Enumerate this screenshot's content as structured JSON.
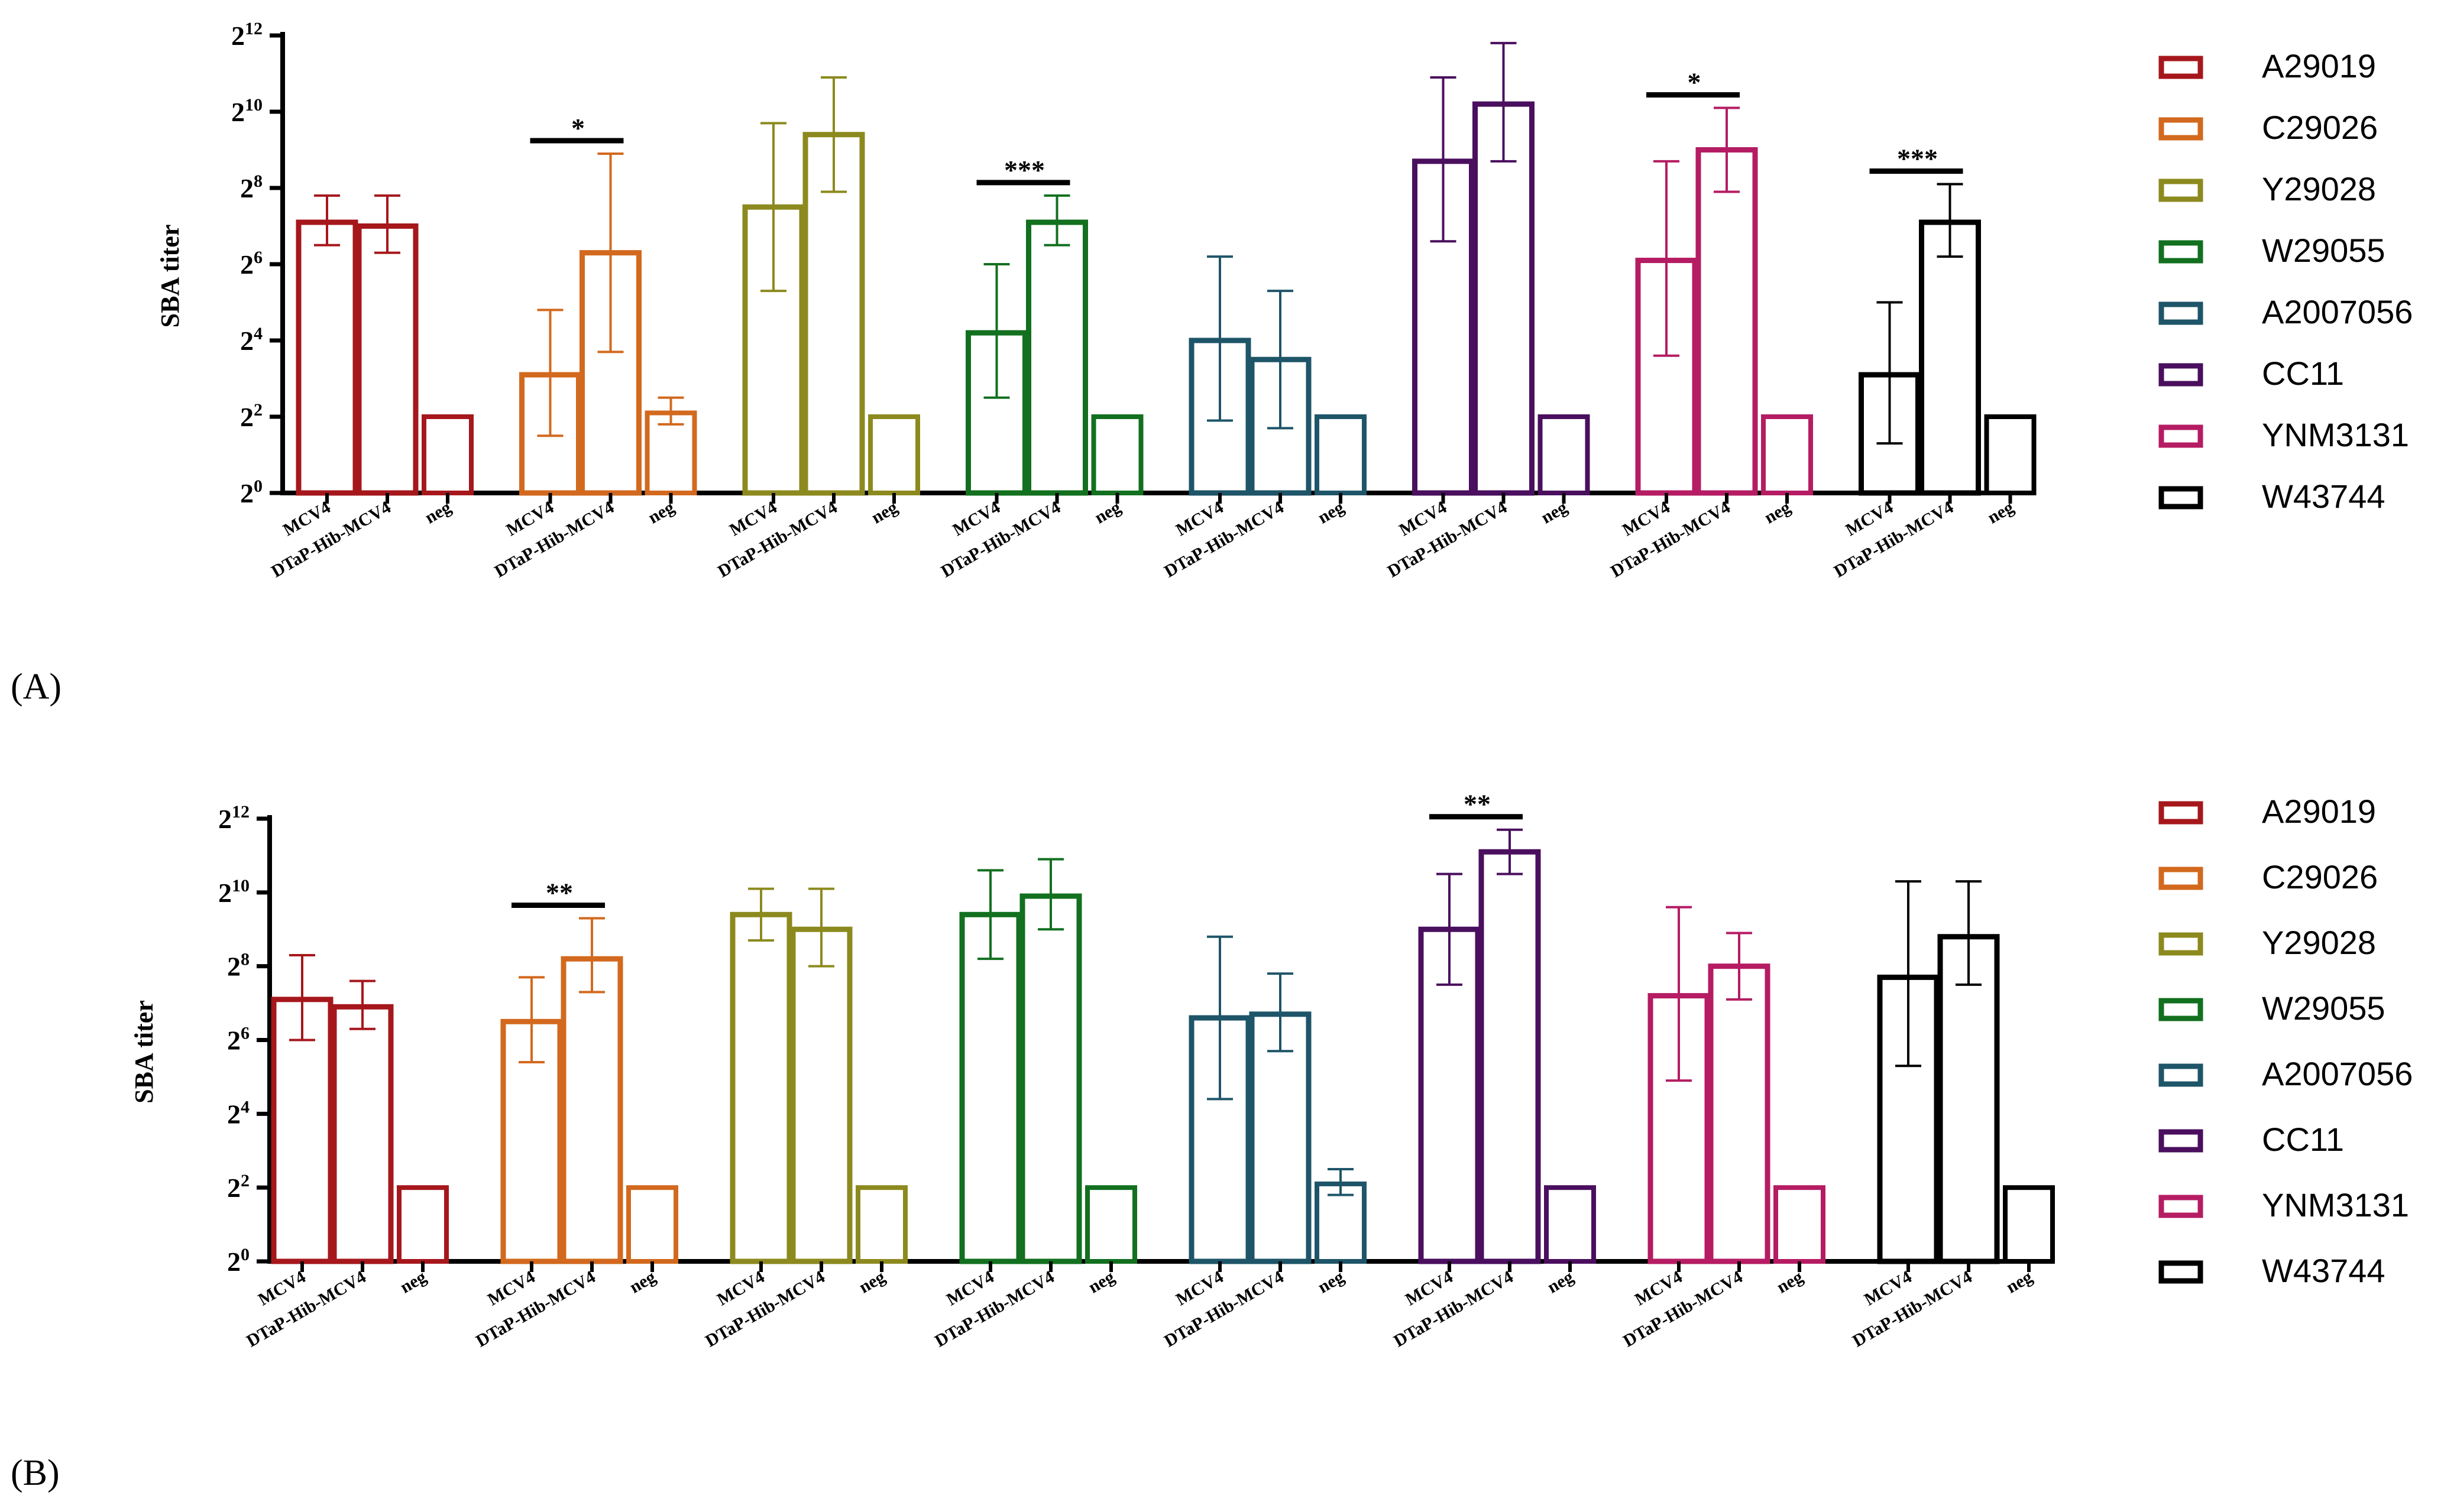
{
  "figure": {
    "panels": [
      "(A)",
      "(B)"
    ]
  },
  "chart_data": [
    {
      "panel": "(A)",
      "type": "bar",
      "ylabel": "SBA titer",
      "yscale": "log2",
      "ylim_exp": [
        0,
        12
      ],
      "yticks": [
        0,
        2,
        4,
        6,
        8,
        10,
        12
      ],
      "ytick_base": "2",
      "categories": [
        "MCV4",
        "DTaP-Hib-MCV4",
        "neg"
      ],
      "groups": [
        {
          "name": "A29019",
          "color": "#A6171C",
          "values": [
            7.1,
            7.0,
            2.0
          ],
          "err_hi": [
            7.8,
            7.8,
            null
          ],
          "err_lo": [
            6.5,
            6.3,
            null
          ],
          "sig": ""
        },
        {
          "name": "C29026",
          "color": "#D2691E",
          "values": [
            3.1,
            6.3,
            2.1
          ],
          "err_hi": [
            4.8,
            8.9,
            2.5
          ],
          "err_lo": [
            1.5,
            3.7,
            1.8
          ],
          "sig": "*"
        },
        {
          "name": "Y29028",
          "color": "#8C8A1E",
          "values": [
            7.5,
            9.4,
            2.0
          ],
          "err_hi": [
            9.7,
            10.9,
            null
          ],
          "err_lo": [
            5.3,
            7.9,
            null
          ],
          "sig": ""
        },
        {
          "name": "W29055",
          "color": "#12701F",
          "values": [
            4.2,
            7.1,
            2.0
          ],
          "err_hi": [
            6.0,
            7.8,
            null
          ],
          "err_lo": [
            2.5,
            6.5,
            null
          ],
          "sig": "***"
        },
        {
          "name": "A2007056",
          "color": "#1E5568",
          "values": [
            4.0,
            3.5,
            2.0
          ],
          "err_hi": [
            6.2,
            5.3,
            null
          ],
          "err_lo": [
            1.9,
            1.7,
            null
          ],
          "sig": ""
        },
        {
          "name": "CC11",
          "color": "#4A0F5E",
          "values": [
            8.7,
            10.2,
            2.0
          ],
          "err_hi": [
            10.9,
            11.8,
            null
          ],
          "err_lo": [
            6.6,
            8.7,
            null
          ],
          "sig": ""
        },
        {
          "name": "YNM3131",
          "color": "#B51C63",
          "values": [
            6.1,
            9.0,
            2.0
          ],
          "err_hi": [
            8.7,
            10.1,
            null
          ],
          "err_lo": [
            3.6,
            7.9,
            null
          ],
          "sig": "*"
        },
        {
          "name": "W43744",
          "color": "#000000",
          "values": [
            3.1,
            7.1,
            2.0
          ],
          "err_hi": [
            5.0,
            8.1,
            null
          ],
          "err_lo": [
            1.3,
            6.2,
            null
          ],
          "sig": "***"
        }
      ],
      "legend": [
        "A29019",
        "C29026",
        "Y29028",
        "W29055",
        "A2007056",
        "CC11",
        "YNM3131",
        "W43744"
      ]
    },
    {
      "panel": "(B)",
      "type": "bar",
      "ylabel": "SBA titer",
      "yscale": "log2",
      "ylim_exp": [
        0,
        12
      ],
      "yticks": [
        0,
        2,
        4,
        6,
        8,
        10,
        12
      ],
      "ytick_base": "2",
      "categories": [
        "MCV4",
        "DTaP-Hib-MCV4",
        "neg"
      ],
      "groups": [
        {
          "name": "A29019",
          "color": "#A6171C",
          "values": [
            7.1,
            6.9,
            2.0
          ],
          "err_hi": [
            8.3,
            7.6,
            null
          ],
          "err_lo": [
            6.0,
            6.3,
            null
          ],
          "sig": ""
        },
        {
          "name": "C29026",
          "color": "#D2691E",
          "values": [
            6.5,
            8.2,
            2.0
          ],
          "err_hi": [
            7.7,
            9.3,
            null
          ],
          "err_lo": [
            5.4,
            7.3,
            null
          ],
          "sig": "**"
        },
        {
          "name": "Y29028",
          "color": "#8C8A1E",
          "values": [
            9.4,
            9.0,
            2.0
          ],
          "err_hi": [
            10.1,
            10.1,
            null
          ],
          "err_lo": [
            8.7,
            8.0,
            null
          ],
          "sig": ""
        },
        {
          "name": "W29055",
          "color": "#12701F",
          "values": [
            9.4,
            9.9,
            2.0
          ],
          "err_hi": [
            10.6,
            10.9,
            null
          ],
          "err_lo": [
            8.2,
            9.0,
            null
          ],
          "sig": ""
        },
        {
          "name": "A2007056",
          "color": "#1E5568",
          "values": [
            6.6,
            6.7,
            2.1
          ],
          "err_hi": [
            8.8,
            7.8,
            2.5
          ],
          "err_lo": [
            4.4,
            5.7,
            1.8
          ],
          "sig": ""
        },
        {
          "name": "CC11",
          "color": "#4A0F5E",
          "values": [
            9.0,
            11.1,
            2.0
          ],
          "err_hi": [
            10.5,
            11.7,
            null
          ],
          "err_lo": [
            7.5,
            10.5,
            null
          ],
          "sig": "**"
        },
        {
          "name": "YNM3131",
          "color": "#B51C63",
          "values": [
            7.2,
            8.0,
            2.0
          ],
          "err_hi": [
            9.6,
            8.9,
            null
          ],
          "err_lo": [
            4.9,
            7.1,
            null
          ],
          "sig": ""
        },
        {
          "name": "W43744",
          "color": "#000000",
          "values": [
            7.7,
            8.8,
            2.0
          ],
          "err_hi": [
            10.3,
            10.3,
            null
          ],
          "err_lo": [
            5.3,
            7.5,
            null
          ],
          "sig": ""
        }
      ],
      "legend": [
        "A29019",
        "C29026",
        "Y29028",
        "W29055",
        "A2007056",
        "CC11",
        "YNM3131",
        "W43744"
      ]
    }
  ]
}
